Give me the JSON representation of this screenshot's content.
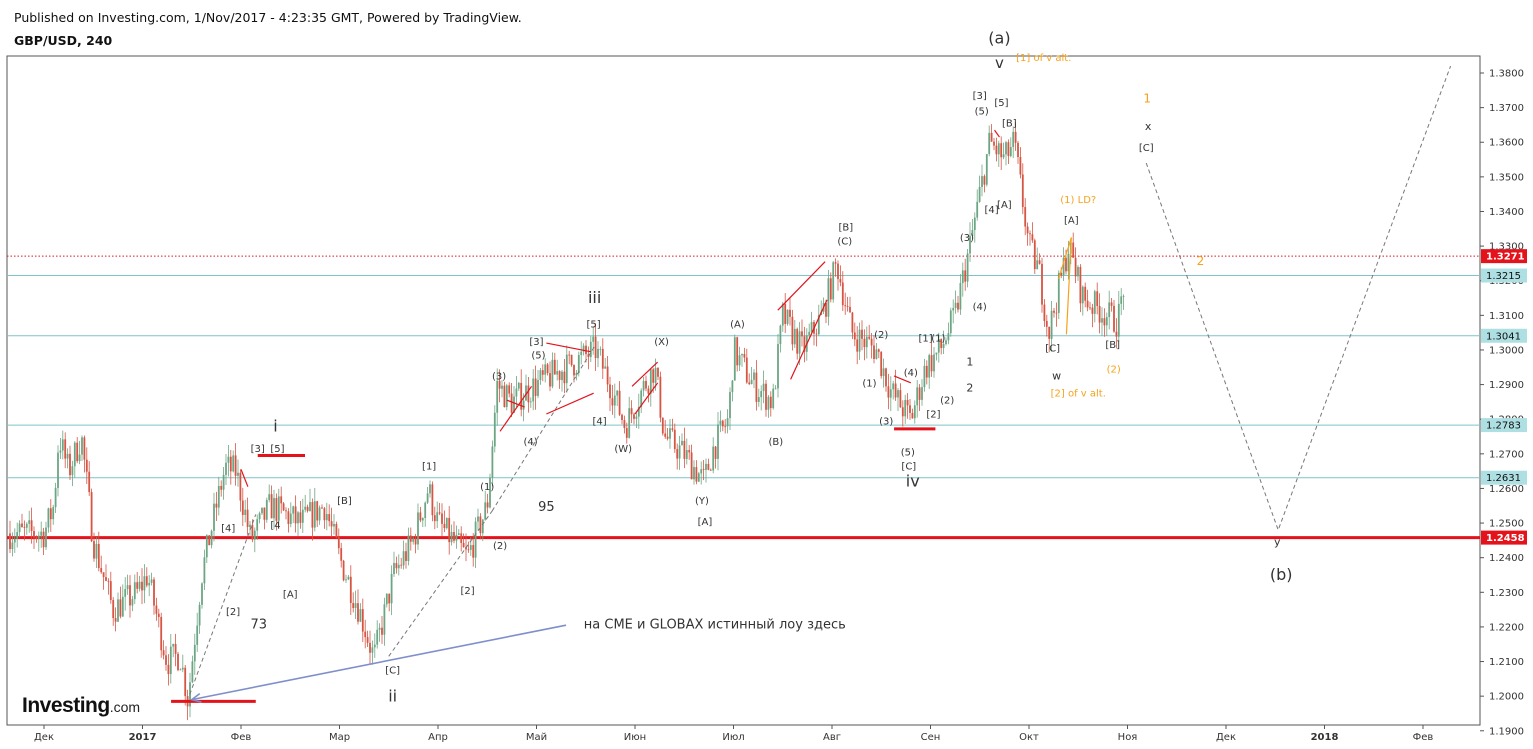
{
  "header": {
    "published": "Published on Investing.com, 1/Nov/2017 - 4:23:35 GMT, Powered by TradingView.",
    "symbol": "GBP/USD, 240"
  },
  "brand": {
    "name": "Investing",
    "suffix": ".com"
  },
  "colors": {
    "candle_up": "#6ba583",
    "candle_down": "#d75442",
    "hline": "#7fc4c9",
    "support": "#e4131b",
    "current": "#e4131b",
    "blue_arrow": "#7f8fcc",
    "orange": "#f7a21b"
  },
  "chart_data": {
    "type": "candlestick",
    "title": "GBP/USD, 240",
    "y_axis": {
      "range": [
        1.187,
        1.3845
      ],
      "ticks": [
        "1.3800",
        "1.3700",
        "1.3600",
        "1.3500",
        "1.3400",
        "1.3300",
        "1.3200",
        "1.3100",
        "1.3000",
        "1.2900",
        "1.2800",
        "1.2700",
        "1.2600",
        "1.2500",
        "1.2400",
        "1.2300",
        "1.2200",
        "1.2100",
        "1.2000",
        "1.1900"
      ]
    },
    "x_axis": {
      "labels": [
        {
          "text": "Дек",
          "t": 0,
          "year": false
        },
        {
          "text": "2017",
          "t": 1,
          "year": true
        },
        {
          "text": "Фев",
          "t": 2,
          "year": false
        },
        {
          "text": "Мар",
          "t": 3,
          "year": false
        },
        {
          "text": "Апр",
          "t": 4,
          "year": false
        },
        {
          "text": "Май",
          "t": 5,
          "year": false
        },
        {
          "text": "Июн",
          "t": 6,
          "year": false
        },
        {
          "text": "Июл",
          "t": 7,
          "year": false
        },
        {
          "text": "Авг",
          "t": 8,
          "year": false
        },
        {
          "text": "Сен",
          "t": 9,
          "year": false
        },
        {
          "text": "Окт",
          "t": 10,
          "year": false
        },
        {
          "text": "Ноя",
          "t": 11,
          "year": false
        },
        {
          "text": "Дек",
          "t": 12,
          "year": false
        },
        {
          "text": "2018",
          "t": 13,
          "year": true
        },
        {
          "text": "Фев",
          "t": 14,
          "year": false
        }
      ]
    },
    "price_path": [
      {
        "t": 0.0,
        "p": 1.247
      },
      {
        "t": 0.1,
        "p": 1.255
      },
      {
        "t": 0.15,
        "p": 1.275
      },
      {
        "t": 0.25,
        "p": 1.265
      },
      {
        "t": 0.38,
        "p": 1.275
      },
      {
        "t": 0.5,
        "p": 1.245
      },
      {
        "t": 0.7,
        "p": 1.225
      },
      {
        "t": 0.95,
        "p": 1.23
      },
      {
        "t": 1.05,
        "p": 1.235
      },
      {
        "t": 1.25,
        "p": 1.21
      },
      {
        "t": 1.38,
        "p": 1.212
      },
      {
        "t": 1.46,
        "p": 1.199
      },
      {
        "t": 1.6,
        "p": 1.235
      },
      {
        "t": 1.75,
        "p": 1.255
      },
      {
        "t": 1.84,
        "p": 1.266
      },
      {
        "t": 1.95,
        "p": 1.265
      },
      {
        "t": 2.1,
        "p": 1.245
      },
      {
        "t": 2.3,
        "p": 1.255
      },
      {
        "t": 2.6,
        "p": 1.25
      },
      {
        "t": 2.85,
        "p": 1.255
      },
      {
        "t": 3.0,
        "p": 1.24
      },
      {
        "t": 3.2,
        "p": 1.225
      },
      {
        "t": 3.35,
        "p": 1.211
      },
      {
        "t": 3.55,
        "p": 1.235
      },
      {
        "t": 3.75,
        "p": 1.245
      },
      {
        "t": 3.9,
        "p": 1.26
      },
      {
        "t": 4.0,
        "p": 1.25
      },
      {
        "t": 4.15,
        "p": 1.245
      },
      {
        "t": 4.3,
        "p": 1.24
      },
      {
        "t": 4.5,
        "p": 1.255
      },
      {
        "t": 4.6,
        "p": 1.29
      },
      {
        "t": 4.75,
        "p": 1.285
      },
      {
        "t": 5.0,
        "p": 1.29
      },
      {
        "t": 5.3,
        "p": 1.295
      },
      {
        "t": 5.6,
        "p": 1.3
      },
      {
        "t": 5.75,
        "p": 1.29
      },
      {
        "t": 5.9,
        "p": 1.278
      },
      {
        "t": 6.1,
        "p": 1.29
      },
      {
        "t": 6.2,
        "p": 1.295
      },
      {
        "t": 6.3,
        "p": 1.275
      },
      {
        "t": 6.5,
        "p": 1.27
      },
      {
        "t": 6.7,
        "p": 1.262
      },
      {
        "t": 6.8,
        "p": 1.272
      },
      {
        "t": 6.95,
        "p": 1.28
      },
      {
        "t": 7.0,
        "p": 1.3
      },
      {
        "t": 7.2,
        "p": 1.29
      },
      {
        "t": 7.4,
        "p": 1.285
      },
      {
        "t": 7.5,
        "p": 1.31
      },
      {
        "t": 7.7,
        "p": 1.3
      },
      {
        "t": 7.9,
        "p": 1.31
      },
      {
        "t": 8.05,
        "p": 1.325
      },
      {
        "t": 8.2,
        "p": 1.305
      },
      {
        "t": 8.45,
        "p": 1.3
      },
      {
        "t": 8.6,
        "p": 1.288
      },
      {
        "t": 8.8,
        "p": 1.28
      },
      {
        "t": 8.95,
        "p": 1.295
      },
      {
        "t": 9.1,
        "p": 1.3
      },
      {
        "t": 9.25,
        "p": 1.31
      },
      {
        "t": 9.4,
        "p": 1.33
      },
      {
        "t": 9.5,
        "p": 1.345
      },
      {
        "t": 9.6,
        "p": 1.36
      },
      {
        "t": 9.75,
        "p": 1.355
      },
      {
        "t": 9.85,
        "p": 1.36
      },
      {
        "t": 10.0,
        "p": 1.33
      },
      {
        "t": 10.1,
        "p": 1.323
      },
      {
        "t": 10.2,
        "p": 1.305
      },
      {
        "t": 10.4,
        "p": 1.33
      },
      {
        "t": 10.55,
        "p": 1.315
      },
      {
        "t": 10.8,
        "p": 1.31
      },
      {
        "t": 10.9,
        "p": 1.308
      },
      {
        "t": 11.0,
        "p": 1.325
      }
    ],
    "horizontal_lines": [
      {
        "value": 1.3271,
        "label": "1.3271",
        "style": "current"
      },
      {
        "value": 1.3215,
        "label": "1.3215",
        "style": "level"
      },
      {
        "value": 1.3041,
        "label": "1.3041",
        "style": "level"
      },
      {
        "value": 1.2783,
        "label": "1.2783",
        "style": "level"
      },
      {
        "value": 1.2631,
        "label": "1.2631",
        "style": "level"
      },
      {
        "value": 1.2458,
        "label": "1.2458",
        "style": "support"
      }
    ],
    "projection": [
      {
        "t": 11.19,
        "p": 1.354
      },
      {
        "t": 12.53,
        "p": 1.248
      },
      {
        "t": 14.28,
        "p": 1.382
      }
    ],
    "annotations": [
      {
        "text": "(a)",
        "t": 9.7,
        "p": 1.3885,
        "size": 16,
        "color": "dark"
      },
      {
        "text": "v",
        "t": 9.7,
        "p": 1.3815,
        "size": 15,
        "color": "dark"
      },
      {
        "text": "[1] of v alt.",
        "t": 10.15,
        "p": 1.3835,
        "size": 10,
        "color": "orange"
      },
      {
        "text": "[3]",
        "t": 9.5,
        "p": 1.3725,
        "size": 10,
        "color": "dark"
      },
      {
        "text": "[5]",
        "t": 9.72,
        "p": 1.3705,
        "size": 10,
        "color": "dark"
      },
      {
        "text": "(5)",
        "t": 9.52,
        "p": 1.368,
        "size": 10,
        "color": "dark"
      },
      {
        "text": "[B]",
        "t": 9.8,
        "p": 1.3645,
        "size": 10,
        "color": "dark"
      },
      {
        "text": "[4]",
        "t": 9.62,
        "p": 1.3395,
        "size": 10,
        "color": "dark"
      },
      {
        "text": "[A]",
        "t": 9.75,
        "p": 1.341,
        "size": 10,
        "color": "dark"
      },
      {
        "text": "(3)",
        "t": 9.37,
        "p": 1.3315,
        "size": 10,
        "color": "dark"
      },
      {
        "text": "(4)",
        "t": 9.5,
        "p": 1.3115,
        "size": 10,
        "color": "dark"
      },
      {
        "text": "[1]",
        "t": 8.95,
        "p": 1.3025,
        "size": 10,
        "color": "dark"
      },
      {
        "text": "(1)",
        "t": 9.08,
        "p": 1.3025,
        "size": 10,
        "color": "dark"
      },
      {
        "text": "1",
        "t": 9.4,
        "p": 1.2955,
        "size": 11,
        "color": "dark"
      },
      {
        "text": "2",
        "t": 9.4,
        "p": 1.288,
        "size": 11,
        "color": "dark"
      },
      {
        "text": "(2)",
        "t": 9.17,
        "p": 1.2845,
        "size": 10,
        "color": "dark"
      },
      {
        "text": "[2]",
        "t": 9.03,
        "p": 1.2805,
        "size": 10,
        "color": "dark"
      },
      {
        "text": "(4)",
        "t": 8.8,
        "p": 1.2925,
        "size": 10,
        "color": "dark"
      },
      {
        "text": "(2)",
        "t": 8.5,
        "p": 1.3035,
        "size": 10,
        "color": "dark"
      },
      {
        "text": "(1)",
        "t": 8.38,
        "p": 1.2895,
        "size": 10,
        "color": "dark"
      },
      {
        "text": "(3)",
        "t": 8.55,
        "p": 1.2785,
        "size": 10,
        "color": "dark"
      },
      {
        "text": "(5)",
        "t": 8.77,
        "p": 1.2695,
        "size": 10,
        "color": "dark"
      },
      {
        "text": "[C]",
        "t": 8.78,
        "p": 1.2655,
        "size": 10,
        "color": "dark"
      },
      {
        "text": "iv",
        "t": 8.82,
        "p": 1.2605,
        "size": 16,
        "color": "dark"
      },
      {
        "text": "[B]",
        "t": 8.14,
        "p": 1.3345,
        "size": 10,
        "color": "dark"
      },
      {
        "text": "(C)",
        "t": 8.13,
        "p": 1.3305,
        "size": 10,
        "color": "dark"
      },
      {
        "text": "(A)",
        "t": 7.04,
        "p": 1.3065,
        "size": 10,
        "color": "dark"
      },
      {
        "text": "(B)",
        "t": 7.43,
        "p": 1.2725,
        "size": 10,
        "color": "dark"
      },
      {
        "text": "(Y)",
        "t": 6.68,
        "p": 1.2555,
        "size": 10,
        "color": "dark"
      },
      {
        "text": "[A]",
        "t": 6.71,
        "p": 1.2495,
        "size": 10,
        "color": "dark"
      },
      {
        "text": "(X)",
        "t": 6.27,
        "p": 1.3015,
        "size": 10,
        "color": "dark"
      },
      {
        "text": "(W)",
        "t": 5.88,
        "p": 1.2705,
        "size": 10,
        "color": "dark"
      },
      {
        "text": "[4]",
        "t": 5.64,
        "p": 1.2785,
        "size": 10,
        "color": "dark"
      },
      {
        "text": "iii",
        "t": 5.59,
        "p": 1.3135,
        "size": 16,
        "color": "dark"
      },
      {
        "text": "[5]",
        "t": 5.58,
        "p": 1.3065,
        "size": 10,
        "color": "dark"
      },
      {
        "text": "[3]",
        "t": 5.0,
        "p": 1.3015,
        "size": 10,
        "color": "dark"
      },
      {
        "text": "(5)",
        "t": 5.02,
        "p": 1.2975,
        "size": 10,
        "color": "dark"
      },
      {
        "text": "(3)",
        "t": 4.62,
        "p": 1.2915,
        "size": 10,
        "color": "dark"
      },
      {
        "text": "(4)",
        "t": 4.94,
        "p": 1.2725,
        "size": 10,
        "color": "dark"
      },
      {
        "text": "95",
        "t": 5.1,
        "p": 1.2535,
        "size": 13,
        "color": "dark"
      },
      {
        "text": "(1)",
        "t": 4.5,
        "p": 1.2595,
        "size": 10,
        "color": "dark"
      },
      {
        "text": "(2)",
        "t": 4.63,
        "p": 1.2425,
        "size": 10,
        "color": "dark"
      },
      {
        "text": "[1]",
        "t": 3.91,
        "p": 1.2655,
        "size": 10,
        "color": "dark"
      },
      {
        "text": "[2]",
        "t": 4.3,
        "p": 1.2295,
        "size": 10,
        "color": "dark"
      },
      {
        "text": "[B]",
        "t": 3.05,
        "p": 1.2555,
        "size": 10,
        "color": "dark"
      },
      {
        "text": "[C]",
        "t": 3.54,
        "p": 1.2065,
        "size": 10,
        "color": "dark"
      },
      {
        "text": "ii",
        "t": 3.54,
        "p": 1.1985,
        "size": 16,
        "color": "dark"
      },
      {
        "text": "i",
        "t": 2.35,
        "p": 1.2765,
        "size": 16,
        "color": "dark"
      },
      {
        "text": "[3]",
        "t": 2.17,
        "p": 1.2705,
        "size": 10,
        "color": "dark"
      },
      {
        "text": "[5]",
        "t": 2.37,
        "p": 1.2705,
        "size": 10,
        "color": "dark"
      },
      {
        "text": "[4]",
        "t": 1.87,
        "p": 1.2475,
        "size": 10,
        "color": "dark"
      },
      {
        "text": "[4",
        "t": 2.35,
        "p": 1.2485,
        "size": 10,
        "color": "dark"
      },
      {
        "text": "[A]",
        "t": 2.5,
        "p": 1.2285,
        "size": 10,
        "color": "dark"
      },
      {
        "text": "[2]",
        "t": 1.92,
        "p": 1.2235,
        "size": 10,
        "color": "dark"
      },
      {
        "text": "73",
        "t": 2.18,
        "p": 1.2195,
        "size": 13,
        "color": "dark"
      },
      {
        "text": "(1) LD?",
        "t": 10.5,
        "p": 1.3425,
        "size": 10,
        "color": "orange"
      },
      {
        "text": "[A]",
        "t": 10.43,
        "p": 1.3365,
        "size": 10,
        "color": "dark"
      },
      {
        "text": "[C]",
        "t": 10.24,
        "p": 1.2995,
        "size": 10,
        "color": "dark"
      },
      {
        "text": "w",
        "t": 10.28,
        "p": 1.2915,
        "size": 11,
        "color": "dark"
      },
      {
        "text": "[2] of v alt.",
        "t": 10.5,
        "p": 1.2865,
        "size": 10,
        "color": "orange"
      },
      {
        "text": "[B]",
        "t": 10.85,
        "p": 1.3005,
        "size": 10,
        "color": "dark"
      },
      {
        "text": "(2)",
        "t": 10.86,
        "p": 1.2935,
        "size": 10,
        "color": "orange"
      },
      {
        "text": "1",
        "t": 11.2,
        "p": 1.3715,
        "size": 12,
        "color": "orange"
      },
      {
        "text": "x",
        "t": 11.21,
        "p": 1.3635,
        "size": 11,
        "color": "dark"
      },
      {
        "text": "[C]",
        "t": 11.19,
        "p": 1.3575,
        "size": 10,
        "color": "dark"
      },
      {
        "text": "2",
        "t": 11.74,
        "p": 1.3245,
        "size": 12,
        "color": "orange"
      },
      {
        "text": "y",
        "t": 12.52,
        "p": 1.2435,
        "size": 11,
        "color": "dark"
      },
      {
        "text": "(b)",
        "t": 12.56,
        "p": 1.2335,
        "size": 16,
        "color": "dark"
      },
      {
        "text": "на CME и GLOBAX  истинный лоу здесь",
        "t": 5.48,
        "p": 1.2195,
        "size": 13,
        "color": "dark",
        "anchor": "start"
      }
    ],
    "red_bars": [
      {
        "t1": 1.29,
        "t2": 2.15,
        "p": 1.1985,
        "w": 3
      },
      {
        "t1": 2.17,
        "t2": 2.65,
        "p": 1.2695,
        "w": 3
      },
      {
        "t1": 8.63,
        "t2": 9.05,
        "p": 1.2772,
        "w": 3
      }
    ],
    "wedges": [
      {
        "t1": 4.63,
        "p1": 1.2765,
        "t2": 4.95,
        "p2": 1.2895,
        "color": "red"
      },
      {
        "t1": 4.7,
        "p1": 1.2855,
        "t2": 4.88,
        "p2": 1.2835,
        "color": "red"
      },
      {
        "t1": 5.1,
        "p1": 1.302,
        "t2": 5.55,
        "p2": 1.2995,
        "color": "red"
      },
      {
        "t1": 5.1,
        "p1": 1.2815,
        "t2": 5.58,
        "p2": 1.2875,
        "color": "red"
      },
      {
        "t1": 5.97,
        "p1": 1.2895,
        "t2": 6.23,
        "p2": 1.2965,
        "color": "red"
      },
      {
        "t1": 6.0,
        "p1": 1.2815,
        "t2": 6.23,
        "p2": 1.2905,
        "color": "red"
      },
      {
        "t1": 7.45,
        "p1": 1.3115,
        "t2": 7.93,
        "p2": 1.3255,
        "color": "red"
      },
      {
        "t1": 7.58,
        "p1": 1.2915,
        "t2": 7.95,
        "p2": 1.3145,
        "color": "red"
      },
      {
        "t1": 8.63,
        "p1": 1.2925,
        "t2": 8.8,
        "p2": 1.2905,
        "color": "red"
      },
      {
        "t1": 9.65,
        "p1": 1.3635,
        "t2": 9.7,
        "p2": 1.3615,
        "color": "red"
      },
      {
        "t1": 2.0,
        "p1": 1.2655,
        "t2": 2.07,
        "p2": 1.2605,
        "color": "red"
      },
      {
        "t1": 10.3,
        "p1": 1.3205,
        "t2": 10.43,
        "p2": 1.3325,
        "color": "orange"
      },
      {
        "t1": 10.43,
        "p1": 1.3325,
        "t2": 10.38,
        "p2": 1.3045,
        "color": "orange"
      }
    ],
    "trend_dashes": [
      {
        "t1": 1.48,
        "p1": 1.2005,
        "t2": 2.15,
        "p2": 1.2525
      },
      {
        "t1": 3.5,
        "p1": 1.2115,
        "t2": 4.55,
        "p2": 1.2535
      },
      {
        "t1": 4.55,
        "p1": 1.2535,
        "t2": 5.6,
        "p2": 1.3015
      }
    ],
    "arrow": {
      "t1": 5.3,
      "p1": 1.2205,
      "t2": 1.5,
      "p2": 1.199
    }
  }
}
